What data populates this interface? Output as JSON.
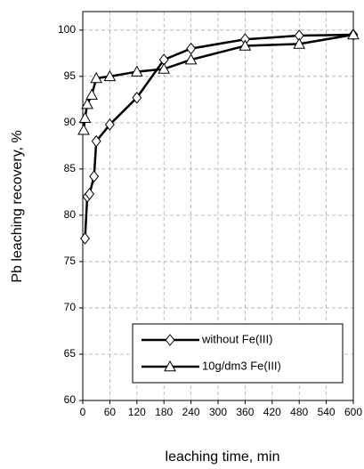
{
  "chart_data": {
    "type": "line",
    "xlabel": "leaching time, min",
    "ylabel": "Pb leaching recovery, %",
    "xlim": [
      0,
      600
    ],
    "xticks": [
      0,
      60,
      120,
      180,
      240,
      300,
      360,
      420,
      480,
      540,
      600
    ],
    "ylim": [
      60,
      102
    ],
    "yticks": [
      60,
      65,
      70,
      75,
      80,
      85,
      90,
      95,
      100
    ],
    "grid": true,
    "legend": "lower right",
    "series": [
      {
        "name": "without Fe(III)",
        "color": "#000000",
        "marker": "diamond",
        "x": [
          5,
          10,
          15,
          25,
          30,
          60,
          120,
          180,
          240,
          360,
          480,
          600
        ],
        "values": [
          77.5,
          82,
          82.3,
          84.2,
          88,
          89.8,
          92.7,
          96.8,
          98,
          99,
          99.4,
          99.5
        ]
      },
      {
        "name": "10g/dm3 Fe(III)",
        "color": "#000000",
        "marker": "triangle",
        "x": [
          2,
          5,
          10,
          20,
          30,
          60,
          120,
          180,
          240,
          360,
          480,
          600
        ],
        "values": [
          89.2,
          90.5,
          92,
          93,
          94.8,
          95,
          95.5,
          95.8,
          96.8,
          98.3,
          98.5,
          99.5
        ]
      }
    ]
  }
}
